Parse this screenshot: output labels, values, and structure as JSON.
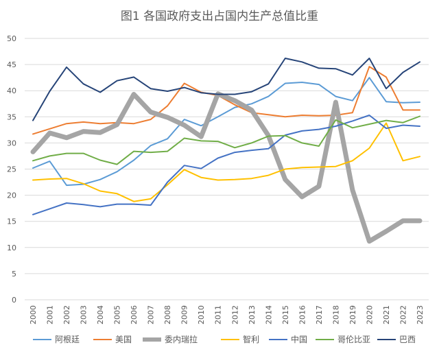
{
  "chart_data": {
    "type": "line",
    "title": "图1 各国政府支出占国内生产总值比重",
    "xlabel": "",
    "ylabel": "",
    "ylim": [
      0,
      50
    ],
    "yticks": [
      0,
      5,
      10,
      15,
      20,
      25,
      30,
      35,
      40,
      45,
      50
    ],
    "grid": true,
    "legend_position": "bottom",
    "x": [
      "2000",
      "2001",
      "2002",
      "2003",
      "2004",
      "2005",
      "2006",
      "2007",
      "2008",
      "2009",
      "2010",
      "2011",
      "2012",
      "2013",
      "2014",
      "2015",
      "2016",
      "2017",
      "2018",
      "2019",
      "2020",
      "2021",
      "2022",
      "2023"
    ],
    "series": [
      {
        "name": "阿根廷",
        "color": "#5B9BD5",
        "width": 2,
        "values": [
          25.2,
          26.5,
          21.9,
          22.1,
          23.0,
          24.5,
          26.7,
          29.5,
          30.8,
          34.5,
          33.3,
          35.0,
          36.8,
          37.5,
          38.9,
          41.4,
          41.6,
          41.2,
          38.9,
          38.1,
          42.5,
          37.9,
          37.7,
          37.8
        ]
      },
      {
        "name": "美国",
        "color": "#ED7D31",
        "width": 2,
        "values": [
          31.7,
          32.7,
          33.7,
          34.0,
          33.7,
          33.9,
          33.7,
          34.5,
          37.1,
          41.4,
          39.7,
          39.1,
          37.3,
          35.8,
          35.4,
          35.0,
          35.3,
          35.2,
          35.3,
          35.8,
          44.6,
          42.6,
          36.3,
          36.3
        ]
      },
      {
        "name": "委内瑞拉",
        "color": "#A5A5A5",
        "width": 7,
        "values": [
          28.3,
          31.9,
          31.0,
          32.2,
          32.0,
          33.5,
          39.3,
          35.9,
          34.9,
          33.4,
          31.2,
          39.4,
          38.1,
          36.3,
          31.4,
          23.0,
          19.7,
          21.7,
          37.8,
          21.0,
          11.2,
          13.1,
          15.1,
          15.1
        ]
      },
      {
        "name": "智利",
        "color": "#FFC000",
        "width": 2,
        "values": [
          22.9,
          23.1,
          23.2,
          22.2,
          20.8,
          20.3,
          18.8,
          19.3,
          22.0,
          24.9,
          23.4,
          22.9,
          23.0,
          23.2,
          23.8,
          25.0,
          25.3,
          25.4,
          25.5,
          26.6,
          29.0,
          33.8,
          26.6,
          27.4
        ]
      },
      {
        "name": "中国",
        "color": "#4472C4",
        "width": 2,
        "values": [
          16.3,
          17.4,
          18.5,
          18.2,
          17.8,
          18.3,
          18.3,
          18.1,
          22.5,
          25.7,
          25.1,
          27.1,
          28.2,
          28.6,
          28.9,
          31.5,
          32.3,
          32.6,
          33.2,
          34.2,
          35.3,
          32.8,
          33.4,
          33.2
        ]
      },
      {
        "name": "哥伦比亚",
        "color": "#70AD47",
        "width": 2,
        "values": [
          26.6,
          27.5,
          28.0,
          28.0,
          26.7,
          25.9,
          28.4,
          28.2,
          28.4,
          30.9,
          30.4,
          30.3,
          29.1,
          30.0,
          31.3,
          31.4,
          30.0,
          29.4,
          34.4,
          32.9,
          33.6,
          34.3,
          33.9,
          35.1
        ]
      },
      {
        "name": "巴西",
        "color": "#264478",
        "width": 2,
        "values": [
          34.3,
          39.9,
          44.5,
          41.3,
          39.7,
          41.9,
          42.6,
          40.4,
          39.9,
          40.6,
          39.6,
          39.3,
          39.3,
          39.8,
          41.3,
          46.2,
          45.5,
          44.3,
          44.2,
          43.0,
          46.2,
          40.4,
          43.5,
          45.5
        ]
      }
    ]
  }
}
